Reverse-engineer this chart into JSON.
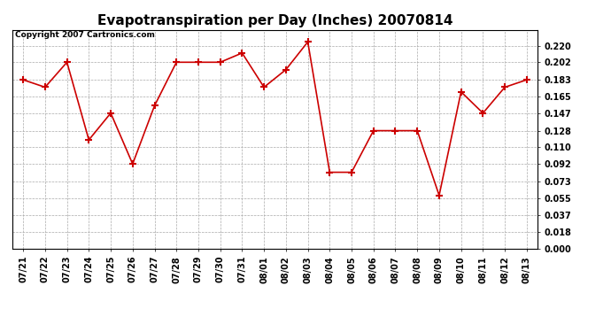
{
  "title": "Evapotranspiration per Day (Inches) 20070814",
  "copyright_text": "Copyright 2007 Cartronics.com",
  "x_labels": [
    "07/21",
    "07/22",
    "07/23",
    "07/24",
    "07/25",
    "07/26",
    "07/27",
    "07/28",
    "07/29",
    "07/30",
    "07/31",
    "08/01",
    "08/02",
    "08/03",
    "08/04",
    "08/05",
    "08/06",
    "08/07",
    "08/08",
    "08/09",
    "08/10",
    "08/11",
    "08/12",
    "08/13"
  ],
  "y_values": [
    0.183,
    0.175,
    0.202,
    0.118,
    0.147,
    0.092,
    0.155,
    0.202,
    0.202,
    0.202,
    0.212,
    0.175,
    0.194,
    0.224,
    0.083,
    0.083,
    0.128,
    0.128,
    0.128,
    0.058,
    0.17,
    0.147,
    0.175,
    0.183
  ],
  "line_color": "#cc0000",
  "marker": "+",
  "marker_color": "#cc0000",
  "marker_size": 6,
  "ylim": [
    0.0,
    0.237
  ],
  "y_ticks": [
    0.0,
    0.018,
    0.037,
    0.055,
    0.073,
    0.092,
    0.11,
    0.128,
    0.147,
    0.165,
    0.183,
    0.202,
    0.22
  ],
  "background_color": "#ffffff",
  "grid_color": "#aaaaaa",
  "title_fontsize": 11,
  "tick_fontsize": 7,
  "copyright_fontsize": 6.5
}
